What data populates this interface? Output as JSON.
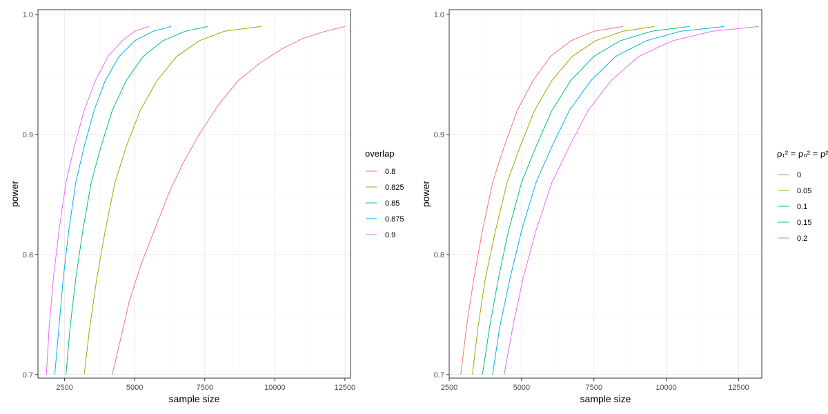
{
  "chart_data": [
    {
      "type": "line",
      "xlabel": "sample size",
      "ylabel": "power",
      "xlim": [
        1550,
        12700
      ],
      "ylim": [
        0.697,
        1.004
      ],
      "xticks": [
        2500,
        5000,
        7500,
        10000,
        12500
      ],
      "yticks": [
        0.7,
        0.8,
        0.9,
        1.0
      ],
      "xtick_labels": [
        "2500",
        "5000",
        "7500",
        "10000",
        "12500"
      ],
      "ytick_labels": [
        "0.7",
        "0.8",
        "0.9",
        "1.0"
      ],
      "grid": true,
      "legend": {
        "title": "overlap",
        "position": "right"
      },
      "series": [
        {
          "name": "0.8",
          "color": "#F8766D",
          "x": [
            4200,
            4500,
            4800,
            5200,
            5700,
            6200,
            6700,
            7300,
            8000,
            8700,
            9500,
            10300,
            11000,
            11800,
            12500
          ],
          "y": [
            0.7,
            0.73,
            0.76,
            0.79,
            0.82,
            0.85,
            0.875,
            0.9,
            0.925,
            0.945,
            0.96,
            0.972,
            0.98,
            0.986,
            0.99
          ]
        },
        {
          "name": "0.825",
          "color": "#A3A500",
          "x": [
            3200,
            3400,
            3650,
            3950,
            4300,
            4700,
            5200,
            5800,
            6500,
            7300,
            8200,
            9500
          ],
          "y": [
            0.7,
            0.74,
            0.78,
            0.82,
            0.86,
            0.89,
            0.92,
            0.945,
            0.965,
            0.978,
            0.986,
            0.99
          ]
        },
        {
          "name": "0.85",
          "color": "#00BF7D",
          "x": [
            2550,
            2700,
            2900,
            3150,
            3450,
            3800,
            4200,
            4700,
            5300,
            6000,
            6800,
            7600
          ],
          "y": [
            0.7,
            0.74,
            0.78,
            0.82,
            0.86,
            0.89,
            0.92,
            0.945,
            0.965,
            0.978,
            0.986,
            0.99
          ]
        },
        {
          "name": "0.875",
          "color": "#00B0F6",
          "x": [
            2150,
            2300,
            2450,
            2650,
            2900,
            3200,
            3550,
            3950,
            4450,
            5000,
            5650,
            6300
          ],
          "y": [
            0.7,
            0.74,
            0.78,
            0.82,
            0.86,
            0.89,
            0.92,
            0.945,
            0.965,
            0.978,
            0.986,
            0.99
          ]
        },
        {
          "name": "0.9",
          "color": "#E76BF3",
          "x": [
            1850,
            1950,
            2100,
            2300,
            2550,
            2850,
            3200,
            3600,
            4050,
            4550,
            5000,
            5500
          ],
          "y": [
            0.7,
            0.74,
            0.78,
            0.82,
            0.86,
            0.89,
            0.92,
            0.945,
            0.965,
            0.978,
            0.986,
            0.99
          ]
        }
      ]
    },
    {
      "type": "line",
      "xlabel": "sample size",
      "ylabel": "power",
      "xlim": [
        2500,
        13300
      ],
      "ylim": [
        0.697,
        1.004
      ],
      "xticks": [
        2500,
        5000,
        7500,
        10000,
        12500
      ],
      "yticks": [
        0.7,
        0.8,
        0.9,
        1.0
      ],
      "xtick_labels": [
        "2500",
        "5000",
        "7500",
        "10000",
        "12500"
      ],
      "ytick_labels": [
        "0.7",
        "0.8",
        "0.9",
        "1.0"
      ],
      "grid": true,
      "legend": {
        "title": "ρ₁² = ρ₀² = ρ²",
        "position": "right"
      },
      "series": [
        {
          "name": "0",
          "color": "#F8766D",
          "x": [
            2900,
            3100,
            3350,
            3650,
            4000,
            4400,
            4850,
            5400,
            6000,
            6700,
            7500,
            8500
          ],
          "y": [
            0.7,
            0.74,
            0.78,
            0.82,
            0.86,
            0.89,
            0.92,
            0.945,
            0.965,
            0.978,
            0.986,
            0.99
          ]
        },
        {
          "name": "0.05",
          "color": "#A3A500",
          "x": [
            3300,
            3500,
            3750,
            4100,
            4500,
            4950,
            5450,
            6050,
            6750,
            7550,
            8500,
            9600
          ],
          "y": [
            0.7,
            0.74,
            0.78,
            0.82,
            0.86,
            0.89,
            0.92,
            0.945,
            0.965,
            0.978,
            0.986,
            0.99
          ]
        },
        {
          "name": "0.1",
          "color": "#00BF7D",
          "x": [
            3650,
            3900,
            4200,
            4550,
            5000,
            5500,
            6050,
            6700,
            7500,
            8400,
            9500,
            10800
          ],
          "y": [
            0.7,
            0.74,
            0.78,
            0.82,
            0.86,
            0.89,
            0.92,
            0.945,
            0.965,
            0.978,
            0.986,
            0.99
          ]
        },
        {
          "name": "0.15",
          "color": "#00B0F6",
          "x": [
            4000,
            4250,
            4600,
            5000,
            5500,
            6050,
            6650,
            7400,
            8250,
            9300,
            10500,
            12000
          ],
          "y": [
            0.7,
            0.74,
            0.78,
            0.82,
            0.86,
            0.89,
            0.92,
            0.945,
            0.965,
            0.978,
            0.986,
            0.99
          ]
        },
        {
          "name": "0.2",
          "color": "#E76BF3",
          "x": [
            4400,
            4700,
            5050,
            5500,
            6050,
            6650,
            7300,
            8100,
            9050,
            10200,
            11600,
            13200
          ],
          "y": [
            0.7,
            0.74,
            0.78,
            0.82,
            0.86,
            0.89,
            0.92,
            0.945,
            0.965,
            0.978,
            0.986,
            0.99
          ]
        }
      ]
    }
  ]
}
